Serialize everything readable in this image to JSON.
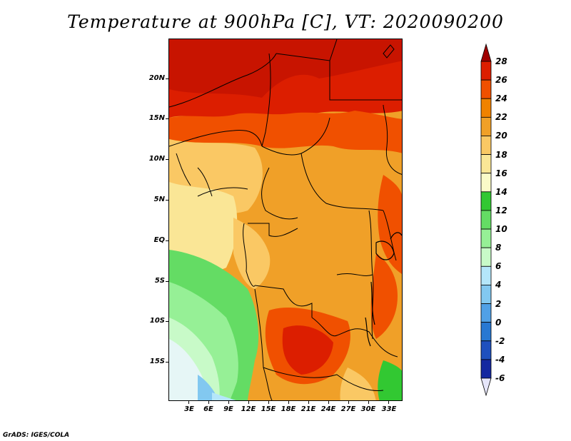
{
  "title": "Temperature at 900hPa [C], VT: 2020090200",
  "credit": "GrADS: IGES/COLA",
  "map": {
    "lat_labels": [
      "20N",
      "15N",
      "10N",
      "5N",
      "EQ",
      "5S",
      "10S",
      "15S"
    ],
    "lon_labels": [
      "3E",
      "6E",
      "9E",
      "12E",
      "15E",
      "18E",
      "21E",
      "24E",
      "27E",
      "30E",
      "33E"
    ]
  },
  "colorbar": {
    "levels": [
      "28",
      "26",
      "24",
      "22",
      "20",
      "18",
      "16",
      "14",
      "12",
      "10",
      "8",
      "6",
      "4",
      "2",
      "0",
      "-2",
      "-4",
      "-6"
    ],
    "colors": [
      "#a00000",
      "#dc1e00",
      "#f05000",
      "#f08200",
      "#f0a028",
      "#fac864",
      "#fae696",
      "#fafac8",
      "#32c832",
      "#64dc64",
      "#96f096",
      "#c8fac8",
      "#b4e6fa",
      "#82c8f0",
      "#50a0e6",
      "#2878d2",
      "#1e50be",
      "#1428a0",
      "#0a1478",
      "#e6e6fa"
    ]
  }
}
